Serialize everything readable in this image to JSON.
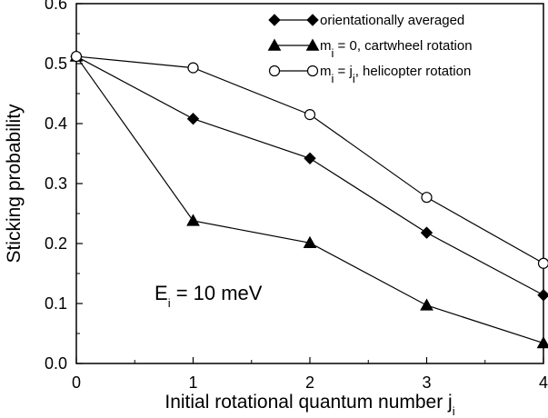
{
  "chart_data": {
    "type": "line",
    "xlabel": "Initial rotational quantum number j",
    "xlabel_sub": "i",
    "ylabel": "Sticking probability",
    "xlim": [
      0,
      4
    ],
    "ylim": [
      0.0,
      0.6
    ],
    "x_ticks": [
      0,
      1,
      2,
      3,
      4
    ],
    "x_tick_labels": [
      "0",
      "1",
      "2",
      "3",
      "4"
    ],
    "y_ticks": [
      0.0,
      0.1,
      0.2,
      0.3,
      0.4,
      0.5,
      0.6
    ],
    "y_tick_labels": [
      "0.0",
      "0.1",
      "0.2",
      "0.3",
      "0.4",
      "0.5",
      "0.6"
    ],
    "grid": false,
    "legend_position": "top-right",
    "annotation": {
      "main": "E",
      "sub": "i",
      "rest": " = 10 meV"
    },
    "series": [
      {
        "name": "orientationally averaged",
        "name_parts": [
          [
            "orientationally averaged",
            ""
          ]
        ],
        "marker": "diamond-filled",
        "x": [
          0,
          1,
          2,
          3,
          4
        ],
        "y": [
          0.512,
          0.408,
          0.342,
          0.218,
          0.114
        ]
      },
      {
        "name": "mi = 0, cartwheel rotation",
        "name_parts": [
          [
            "m",
            ""
          ],
          [
            "i",
            "sub"
          ],
          [
            " = 0, cartwheel rotation",
            ""
          ]
        ],
        "marker": "triangle-filled",
        "x": [
          0,
          1,
          2,
          3,
          4
        ],
        "y": [
          0.512,
          0.238,
          0.201,
          0.097,
          0.034
        ]
      },
      {
        "name": "mi = ji, helicopter rotation",
        "name_parts": [
          [
            "m",
            ""
          ],
          [
            "i",
            "sub"
          ],
          [
            " = j",
            ""
          ],
          [
            "i",
            "sub"
          ],
          [
            ", helicopter rotation",
            ""
          ]
        ],
        "marker": "circle-open",
        "x": [
          0,
          1,
          2,
          3,
          4
        ],
        "y": [
          0.512,
          0.493,
          0.415,
          0.277,
          0.167
        ]
      }
    ]
  }
}
